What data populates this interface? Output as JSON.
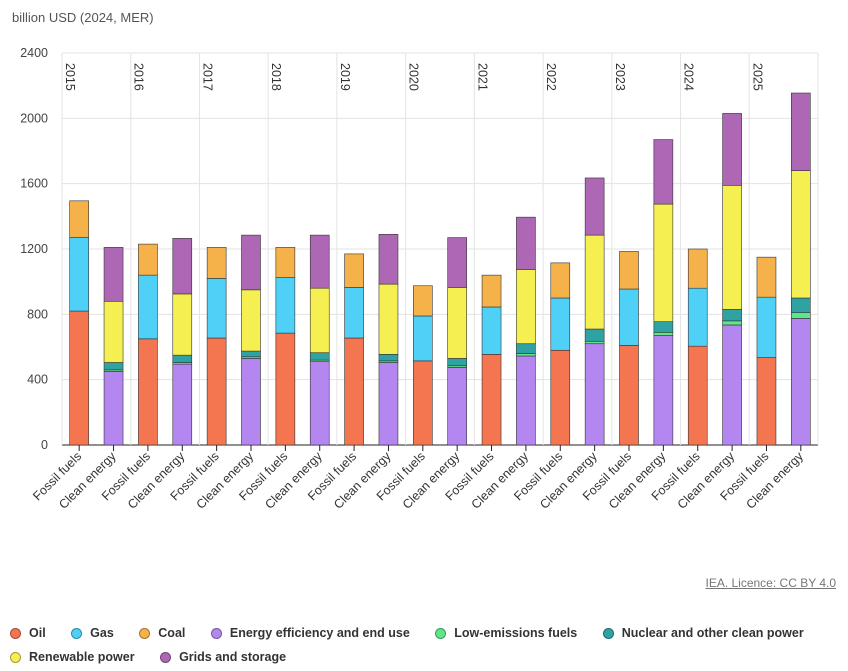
{
  "unit_label": "billion USD (2024, MER)",
  "licence": "IEA. Licence: CC BY 4.0",
  "legend": [
    {
      "key": "oil",
      "label": "Oil",
      "color": "#f47651"
    },
    {
      "key": "gas",
      "label": "Gas",
      "color": "#4fd0f7"
    },
    {
      "key": "coal",
      "label": "Coal",
      "color": "#f5b24a"
    },
    {
      "key": "efficiency",
      "label": "Energy efficiency and end use",
      "color": "#b486f0"
    },
    {
      "key": "lowemis",
      "label": "Low-emissions fuels",
      "color": "#5fe58b"
    },
    {
      "key": "nuclear",
      "label": "Nuclear and other clean power",
      "color": "#2fa3a3"
    },
    {
      "key": "renewable",
      "label": "Renewable power",
      "color": "#f6ef52"
    },
    {
      "key": "grids",
      "label": "Grids and storage",
      "color": "#ad67b5"
    }
  ],
  "chart_data": {
    "type": "bar",
    "stacked": true,
    "title": "",
    "ylabel": "billion USD (2024, MER)",
    "ylim": [
      0,
      2400
    ],
    "yticks": [
      0,
      400,
      800,
      1200,
      1600,
      2000,
      2400
    ],
    "years": [
      "2015",
      "2016",
      "2017",
      "2018",
      "2019",
      "2020",
      "2021",
      "2022",
      "2023",
      "2024",
      "2025"
    ],
    "categories": [
      "Fossil fuels",
      "Clean energy"
    ],
    "fossil_series": [
      "oil",
      "gas",
      "coal"
    ],
    "clean_series": [
      "efficiency",
      "lowemis",
      "nuclear",
      "renewable",
      "grids"
    ],
    "fossil": {
      "oil": [
        820,
        650,
        655,
        685,
        655,
        515,
        555,
        580,
        610,
        605,
        535
      ],
      "gas": [
        450,
        390,
        365,
        340,
        310,
        275,
        290,
        320,
        345,
        355,
        370
      ],
      "coal": [
        225,
        190,
        190,
        185,
        205,
        185,
        195,
        215,
        230,
        240,
        245
      ]
    },
    "clean": {
      "efficiency": [
        450,
        495,
        530,
        510,
        505,
        475,
        545,
        620,
        670,
        735,
        775
      ],
      "lowemis": [
        10,
        10,
        10,
        10,
        10,
        10,
        15,
        15,
        20,
        25,
        35
      ],
      "nuclear": [
        45,
        45,
        35,
        45,
        40,
        45,
        60,
        75,
        65,
        70,
        90
      ],
      "renewable": [
        375,
        375,
        375,
        395,
        430,
        435,
        455,
        575,
        720,
        760,
        780
      ],
      "grids": [
        330,
        340,
        335,
        325,
        305,
        305,
        320,
        350,
        395,
        440,
        475
      ]
    }
  }
}
